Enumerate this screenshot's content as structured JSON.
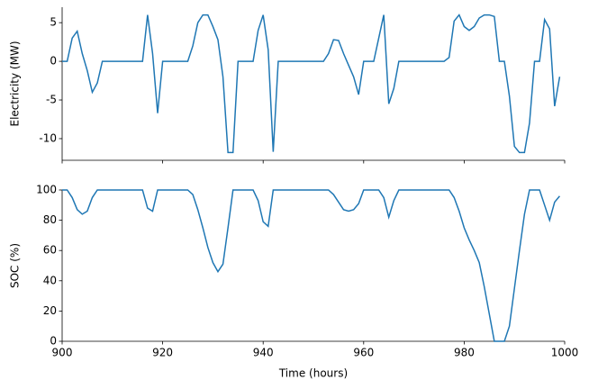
{
  "chart_data": [
    {
      "type": "line",
      "ylabel": "Electricity (MW)",
      "x": [
        900,
        901,
        902,
        903,
        904,
        905,
        906,
        907,
        908,
        909,
        910,
        911,
        912,
        913,
        914,
        915,
        916,
        917,
        918,
        919,
        920,
        921,
        922,
        923,
        924,
        925,
        926,
        927,
        928,
        929,
        930,
        931,
        932,
        933,
        934,
        935,
        936,
        937,
        938,
        939,
        940,
        941,
        942,
        943,
        944,
        945,
        946,
        947,
        948,
        949,
        950,
        951,
        952,
        953,
        954,
        955,
        956,
        957,
        958,
        959,
        960,
        961,
        962,
        963,
        964,
        965,
        966,
        967,
        968,
        969,
        970,
        971,
        972,
        973,
        974,
        975,
        976,
        977,
        978,
        979,
        980,
        981,
        982,
        983,
        984,
        985,
        986,
        987,
        988,
        989,
        990,
        991,
        992,
        993,
        994,
        995,
        996,
        997,
        998,
        999
      ],
      "series": [
        {
          "color": "#1f77b4",
          "values": [
            0,
            0,
            3,
            3.9,
            1,
            -1.2,
            -4,
            -2.8,
            0,
            0,
            0,
            0,
            0,
            0,
            0,
            0,
            0,
            6,
            1,
            -6.7,
            0,
            0,
            0,
            0,
            0,
            0,
            2,
            5,
            6,
            6,
            4.5,
            2.8,
            -2,
            -11.8,
            -11.8,
            0,
            0,
            0,
            0,
            4,
            6,
            1.5,
            -11.7,
            0,
            0,
            0,
            0,
            0,
            0,
            0,
            0,
            0,
            0,
            1,
            2.8,
            2.7,
            1,
            -0.5,
            -2,
            -4.3,
            0,
            0,
            0,
            3,
            6,
            -5.5,
            -3.5,
            0,
            0,
            0,
            0,
            0,
            0,
            0,
            0,
            0,
            0,
            0.5,
            5.2,
            6,
            4.5,
            4,
            4.5,
            5.6,
            6,
            6,
            5.8,
            0,
            0,
            -4.5,
            -11,
            -11.8,
            -11.8,
            -8,
            0,
            0,
            5.4,
            4.2,
            -5.8,
            -2
          ]
        }
      ],
      "xlim": [
        900,
        1000
      ],
      "xticks": [
        900,
        920,
        940,
        960,
        980,
        1000
      ],
      "ylim": [
        -12.8,
        7
      ],
      "yticks": [
        -10,
        -5,
        0,
        5
      ]
    },
    {
      "type": "line",
      "ylabel": "SOC (%)",
      "xlabel": "Time (hours)",
      "x": [
        900,
        901,
        902,
        903,
        904,
        905,
        906,
        907,
        908,
        909,
        910,
        911,
        912,
        913,
        914,
        915,
        916,
        917,
        918,
        919,
        920,
        921,
        922,
        923,
        924,
        925,
        926,
        927,
        928,
        929,
        930,
        931,
        932,
        933,
        934,
        935,
        936,
        937,
        938,
        939,
        940,
        941,
        942,
        943,
        944,
        945,
        946,
        947,
        948,
        949,
        950,
        951,
        952,
        953,
        954,
        955,
        956,
        957,
        958,
        959,
        960,
        961,
        962,
        963,
        964,
        965,
        966,
        967,
        968,
        969,
        970,
        971,
        972,
        973,
        974,
        975,
        976,
        977,
        978,
        979,
        980,
        981,
        982,
        983,
        984,
        985,
        986,
        987,
        988,
        989,
        990,
        991,
        992,
        993,
        994,
        995,
        996,
        997,
        998,
        999
      ],
      "series": [
        {
          "color": "#1f77b4",
          "values": [
            100,
            100,
            95,
            87,
            84,
            86,
            95,
            100,
            100,
            100,
            100,
            100,
            100,
            100,
            100,
            100,
            100,
            88,
            86,
            100,
            100,
            100,
            100,
            100,
            100,
            100,
            97,
            87,
            75,
            62,
            52,
            46,
            51,
            75,
            100,
            100,
            100,
            100,
            100,
            93,
            79,
            76,
            100,
            100,
            100,
            100,
            100,
            100,
            100,
            100,
            100,
            100,
            100,
            100,
            97,
            92,
            87,
            86,
            87,
            91,
            100,
            100,
            100,
            100,
            95,
            82,
            93,
            100,
            100,
            100,
            100,
            100,
            100,
            100,
            100,
            100,
            100,
            100,
            95,
            86,
            75,
            67,
            60,
            52,
            36,
            18,
            0,
            0,
            0,
            10,
            35,
            60,
            84,
            100,
            100,
            100,
            90,
            80,
            92,
            96
          ]
        }
      ],
      "xlim": [
        900,
        1000
      ],
      "xticks": [
        900,
        920,
        940,
        960,
        980,
        1000
      ],
      "ylim": [
        0,
        100
      ],
      "yticks": [
        0,
        20,
        40,
        60,
        80,
        100
      ]
    }
  ]
}
